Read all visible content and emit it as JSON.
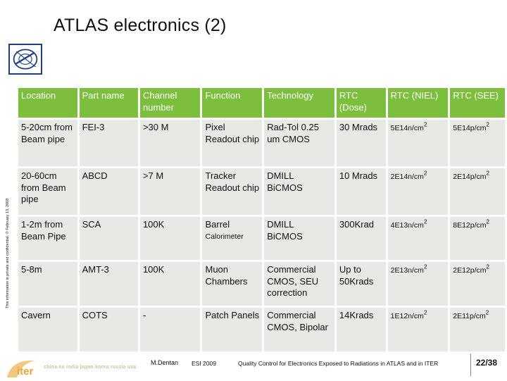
{
  "title": "ATLAS electronics (2)",
  "side_note": "This information is private and confidential.  © February 13, 2008",
  "table": {
    "headers": [
      "Location",
      "Part name",
      "Channel number",
      "Function",
      "Technology",
      "RTC (Dose)",
      "RTC (NIEL)",
      "RTC (SEE)"
    ],
    "rows": [
      {
        "location": "5-20cm from Beam pipe",
        "part": "FEI-3",
        "channels": ">30 M",
        "function": "Pixel Readout chip",
        "technology": "Rad-Tol 0.25 um CMOS",
        "dose": "30 Mrads",
        "niel_base": "5E14n/cm",
        "see_base": "5E14p/cm"
      },
      {
        "location": "20-60cm from Beam pipe",
        "part": "ABCD",
        "channels": ">7 M",
        "function": "Tracker Readout chip",
        "technology": "DMILL BiCMOS",
        "dose": "10 Mrads",
        "niel_base": "2E14n/cm",
        "see_base": "2E14p/cm"
      },
      {
        "location": "1-2m from Beam Pipe",
        "part": "SCA",
        "channels": "100K",
        "function_line1": "Barrel",
        "function_line2": "Calorimeter",
        "technology": "DMILL BiCMOS",
        "dose": "300Krad",
        "niel_base": "4E13n/cm",
        "see_base": "8E12p/cm"
      },
      {
        "location": "5-8m",
        "part": "AMT-3",
        "channels": "100K",
        "function": "Muon Chambers",
        "technology": "Commercial CMOS, SEU correction",
        "dose": "Up to 50Krads",
        "niel_base": "2E13n/cm",
        "see_base": "2E12p/cm"
      },
      {
        "location": "Cavern",
        "part": "COTS",
        "channels": "-",
        "function": "Patch Panels",
        "technology": "Commercial CMOS, Bipolar",
        "dose": "14Krads",
        "niel_base": "1E12n/cm",
        "see_base": "2E11p/cm"
      }
    ],
    "exponent": "2"
  },
  "footer": {
    "logo_text": "iter",
    "members": "china eu india japan korea russia usa",
    "author": "M.Dentan",
    "conference": "ESI 2009",
    "description": "Quality Control for Electronics Exposed to Radiations in ATLAS and in ITER",
    "page": "22/38"
  },
  "colors": {
    "header_bg": "#7cbf3c",
    "cell_bg": "#e7e9e4",
    "cern_blue": "#1f3f86",
    "iter_orange": "#e8a33a"
  }
}
